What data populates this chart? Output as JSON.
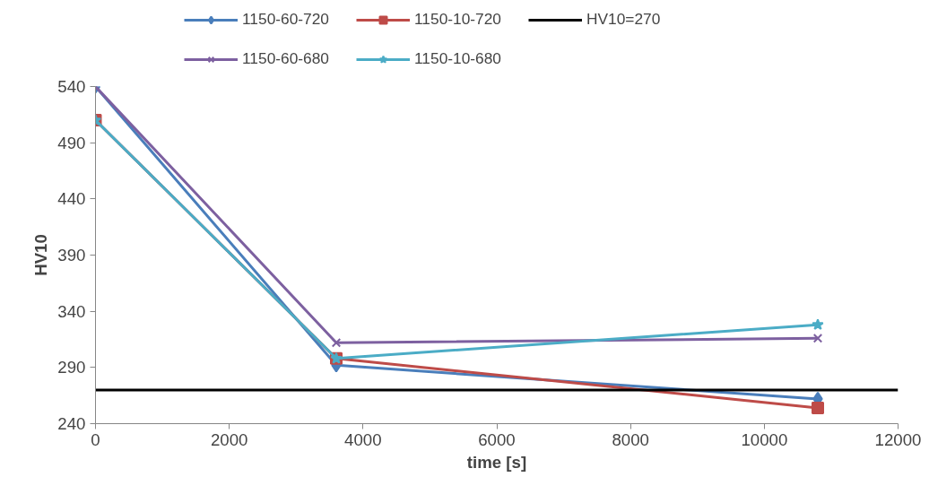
{
  "chart_data": {
    "type": "line",
    "xlabel": "time [s]",
    "ylabel": "HV10",
    "x": [
      0,
      3600,
      10800
    ],
    "series": [
      {
        "name": "1150-60-720",
        "color": "#4a7ebb",
        "marker": "diamond",
        "values": [
          540,
          292,
          262
        ]
      },
      {
        "name": "1150-10-720",
        "color": "#be4b48",
        "marker": "square",
        "values": [
          510,
          298,
          254
        ]
      },
      {
        "name": "HV10=270",
        "color": "#000000",
        "marker": "none",
        "x": [
          0,
          12000
        ],
        "values": [
          270,
          270
        ]
      },
      {
        "name": "1150-60-680",
        "color": "#7d60a0",
        "marker": "cross",
        "values": [
          540,
          312,
          316
        ]
      },
      {
        "name": "1150-10-680",
        "color": "#4bacc6",
        "marker": "star",
        "values": [
          510,
          298,
          328
        ]
      }
    ],
    "xlim": [
      0,
      12000
    ],
    "xticks": [
      0,
      2000,
      4000,
      6000,
      8000,
      10000,
      12000
    ],
    "ylim": [
      240,
      540
    ],
    "yticks": [
      240,
      290,
      340,
      390,
      440,
      490,
      540
    ],
    "grid": false,
    "legend": "top",
    "line_style": "solid"
  }
}
